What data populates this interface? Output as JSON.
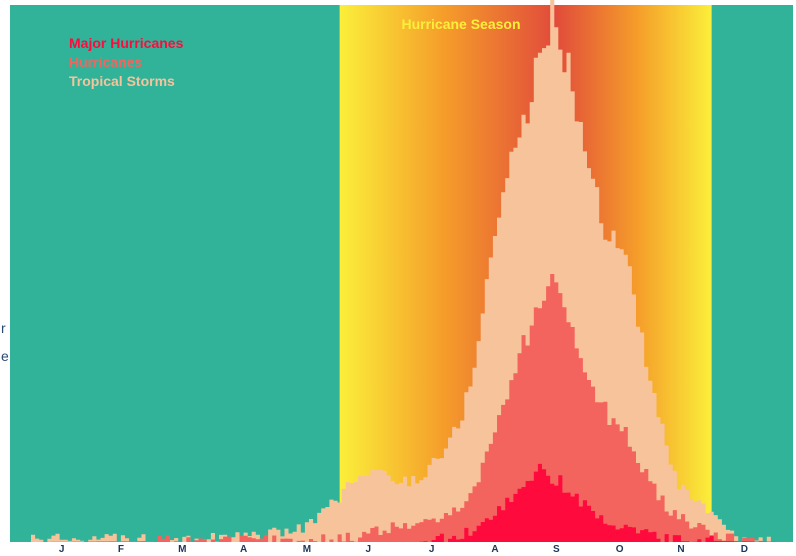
{
  "chart_data": {
    "type": "area",
    "title": "Hurricane Season",
    "xlabel": "",
    "ylabel": "",
    "months": [
      "J",
      "F",
      "M",
      "A",
      "M",
      "J",
      "J",
      "A",
      "S",
      "O",
      "N",
      "D"
    ],
    "season_range": [
      "Jun 1",
      "Nov 30"
    ],
    "x_unit": "day of year",
    "xlim": [
      1,
      365
    ],
    "ylim": [
      0,
      100
    ],
    "grid": false,
    "legend_position": "top-left",
    "series": [
      {
        "name": "Tropical Storms",
        "color": "#f7c39a",
        "x": [
          1,
          90,
          110,
          125,
          135,
          145,
          152,
          160,
          170,
          180,
          190,
          200,
          210,
          215,
          220,
          225,
          230,
          235,
          240,
          245,
          248,
          250,
          253,
          256,
          258,
          261,
          264,
          267,
          270,
          273,
          276,
          280,
          285,
          290,
          295,
          300,
          305,
          310,
          315,
          320,
          325,
          330,
          335,
          340,
          345,
          350,
          360,
          365
        ],
        "y": [
          0.5,
          0.8,
          1,
          2,
          3,
          6,
          9,
          12,
          13,
          11,
          12,
          16,
          22,
          30,
          40,
          53,
          63,
          72,
          77,
          83,
          89,
          92,
          96,
          100,
          94,
          91,
          86,
          80,
          76,
          71,
          66,
          59,
          56,
          55,
          47,
          35,
          27,
          19,
          12,
          9,
          8,
          6,
          4,
          2,
          1,
          0.5,
          0.3,
          0.2
        ]
      },
      {
        "name": "Hurricanes",
        "color": "#f4645f",
        "x": [
          1,
          150,
          160,
          170,
          180,
          190,
          200,
          210,
          215,
          220,
          225,
          230,
          235,
          240,
          245,
          248,
          250,
          253,
          256,
          258,
          261,
          264,
          267,
          270,
          273,
          276,
          280,
          285,
          290,
          295,
          300,
          305,
          310,
          315,
          320,
          325,
          330,
          340,
          345,
          365
        ],
        "y": [
          0,
          0.5,
          1,
          2,
          3,
          3,
          4,
          7,
          9,
          13,
          18,
          24,
          30,
          36,
          40,
          44,
          46,
          49,
          51,
          47,
          44,
          40,
          37,
          34,
          31,
          28,
          25,
          22,
          21,
          17,
          13,
          10,
          7,
          5,
          4,
          3,
          2,
          1,
          0.5,
          0
        ]
      },
      {
        "name": "Major Hurricanes",
        "color": "#ff0a3c",
        "x": [
          1,
          190,
          200,
          210,
          215,
          220,
          225,
          230,
          235,
          240,
          245,
          248,
          250,
          253,
          256,
          258,
          261,
          264,
          267,
          270,
          273,
          276,
          280,
          285,
          290,
          295,
          300,
          305,
          310,
          315,
          320,
          365
        ],
        "y": [
          0,
          0,
          0.5,
          1,
          2,
          3,
          4,
          6,
          8,
          10,
          12,
          15,
          14,
          13,
          11,
          12,
          10,
          9,
          8,
          7,
          6,
          5,
          4,
          3,
          2.5,
          2,
          1.5,
          1,
          0.7,
          0.5,
          0.3,
          0
        ]
      }
    ]
  },
  "colors": {
    "background": "#31b39a",
    "season_edge": "#fbef3a",
    "season_mid": "#f59d2a",
    "season_peak": "#e14b3b",
    "title_text": "#fbef3a",
    "tick_text": "#1d3557"
  },
  "edge_glyphs": [
    "r",
    "e"
  ]
}
